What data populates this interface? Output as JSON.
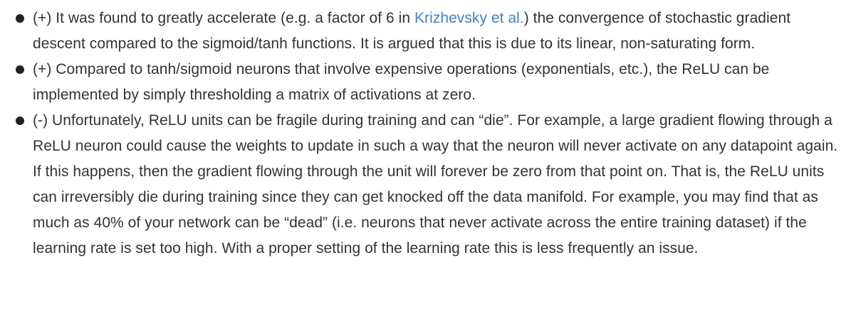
{
  "items": [
    {
      "before": "(+) It was found to greatly accelerate (e.g. a factor of 6 in ",
      "link": "Krizhevsky et al.",
      "after": ") the convergence of stochastic gradient descent compared to the sigmoid/tanh functions. It is argued that this is due to its linear, non-saturating form."
    },
    {
      "text": "(+) Compared to tanh/sigmoid neurons that involve expensive operations (exponentials, etc.), the ReLU can be implemented by simply thresholding a matrix of activations at zero."
    },
    {
      "text": "(-) Unfortunately, ReLU units can be fragile during training and can “die”. For example, a large gradient flowing through a ReLU neuron could cause the weights to update in such a way that the neuron will never activate on any datapoint again. If this happens, then the gradient flowing through the unit will forever be zero from that point on. That is, the ReLU units can irreversibly die during training since they can get knocked off the data manifold. For example, you may find that as much as 40% of your network can be “dead” (i.e. neurons that never activate across the entire training dataset) if the learning rate is set too high. With a proper setting of the learning rate this is less frequently an issue."
    }
  ],
  "colors": {
    "text": "#333333",
    "link": "#4183c4",
    "bullet": "#222222"
  }
}
